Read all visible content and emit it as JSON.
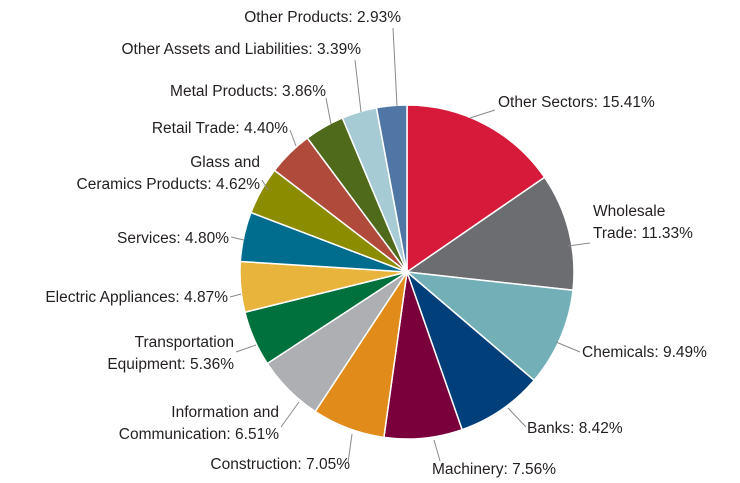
{
  "chart_data": {
    "type": "pie",
    "title": "",
    "start_angle_deg": 0,
    "direction": "clockwise",
    "slices": [
      {
        "key": "other_sectors",
        "label_lines": [
          "Other Sectors: 15.41%"
        ],
        "value": 15.41,
        "color": "#d7193a"
      },
      {
        "key": "wholesale_trade",
        "label_lines": [
          "Wholesale",
          "Trade: 11.33%"
        ],
        "value": 11.33,
        "color": "#6c6d70"
      },
      {
        "key": "chemicals",
        "label_lines": [
          "Chemicals: 9.49%"
        ],
        "value": 9.49,
        "color": "#72afb7"
      },
      {
        "key": "banks",
        "label_lines": [
          "Banks: 8.42%"
        ],
        "value": 8.42,
        "color": "#003f7a"
      },
      {
        "key": "machinery",
        "label_lines": [
          "Machinery: 7.56%"
        ],
        "value": 7.56,
        "color": "#7a003c"
      },
      {
        "key": "construction",
        "label_lines": [
          "Construction: 7.05%"
        ],
        "value": 7.05,
        "color": "#e08b1a"
      },
      {
        "key": "information_and_communication",
        "label_lines": [
          "Information and",
          "Communication: 6.51%"
        ],
        "value": 6.51,
        "color": "#adafb2"
      },
      {
        "key": "transportation_equipment",
        "label_lines": [
          "Transportation",
          "Equipment: 5.36%"
        ],
        "value": 5.36,
        "color": "#00703c"
      },
      {
        "key": "electric_appliances",
        "label_lines": [
          "Electric Appliances: 4.87%"
        ],
        "value": 4.87,
        "color": "#e8b43c"
      },
      {
        "key": "services",
        "label_lines": [
          "Services: 4.80%"
        ],
        "value": 4.8,
        "color": "#006d8f"
      },
      {
        "key": "glass_and_ceramics_products",
        "label_lines": [
          "Glass and",
          "Ceramics Products: 4.62%"
        ],
        "value": 4.62,
        "color": "#8b8c00"
      },
      {
        "key": "retail_trade",
        "label_lines": [
          "Retail Trade: 4.40%"
        ],
        "value": 4.4,
        "color": "#b04a3b"
      },
      {
        "key": "metal_products",
        "label_lines": [
          "Metal Products: 3.86%"
        ],
        "value": 3.86,
        "color": "#4e6a1a"
      },
      {
        "key": "other_assets_and_liabilities",
        "label_lines": [
          "Other Assets and Liabilities: 3.39%"
        ],
        "value": 3.39,
        "color": "#a7cbd4"
      },
      {
        "key": "other_products",
        "label_lines": [
          "Other Products: 2.93%"
        ],
        "value": 2.93,
        "color": "#4f76a5"
      }
    ]
  }
}
